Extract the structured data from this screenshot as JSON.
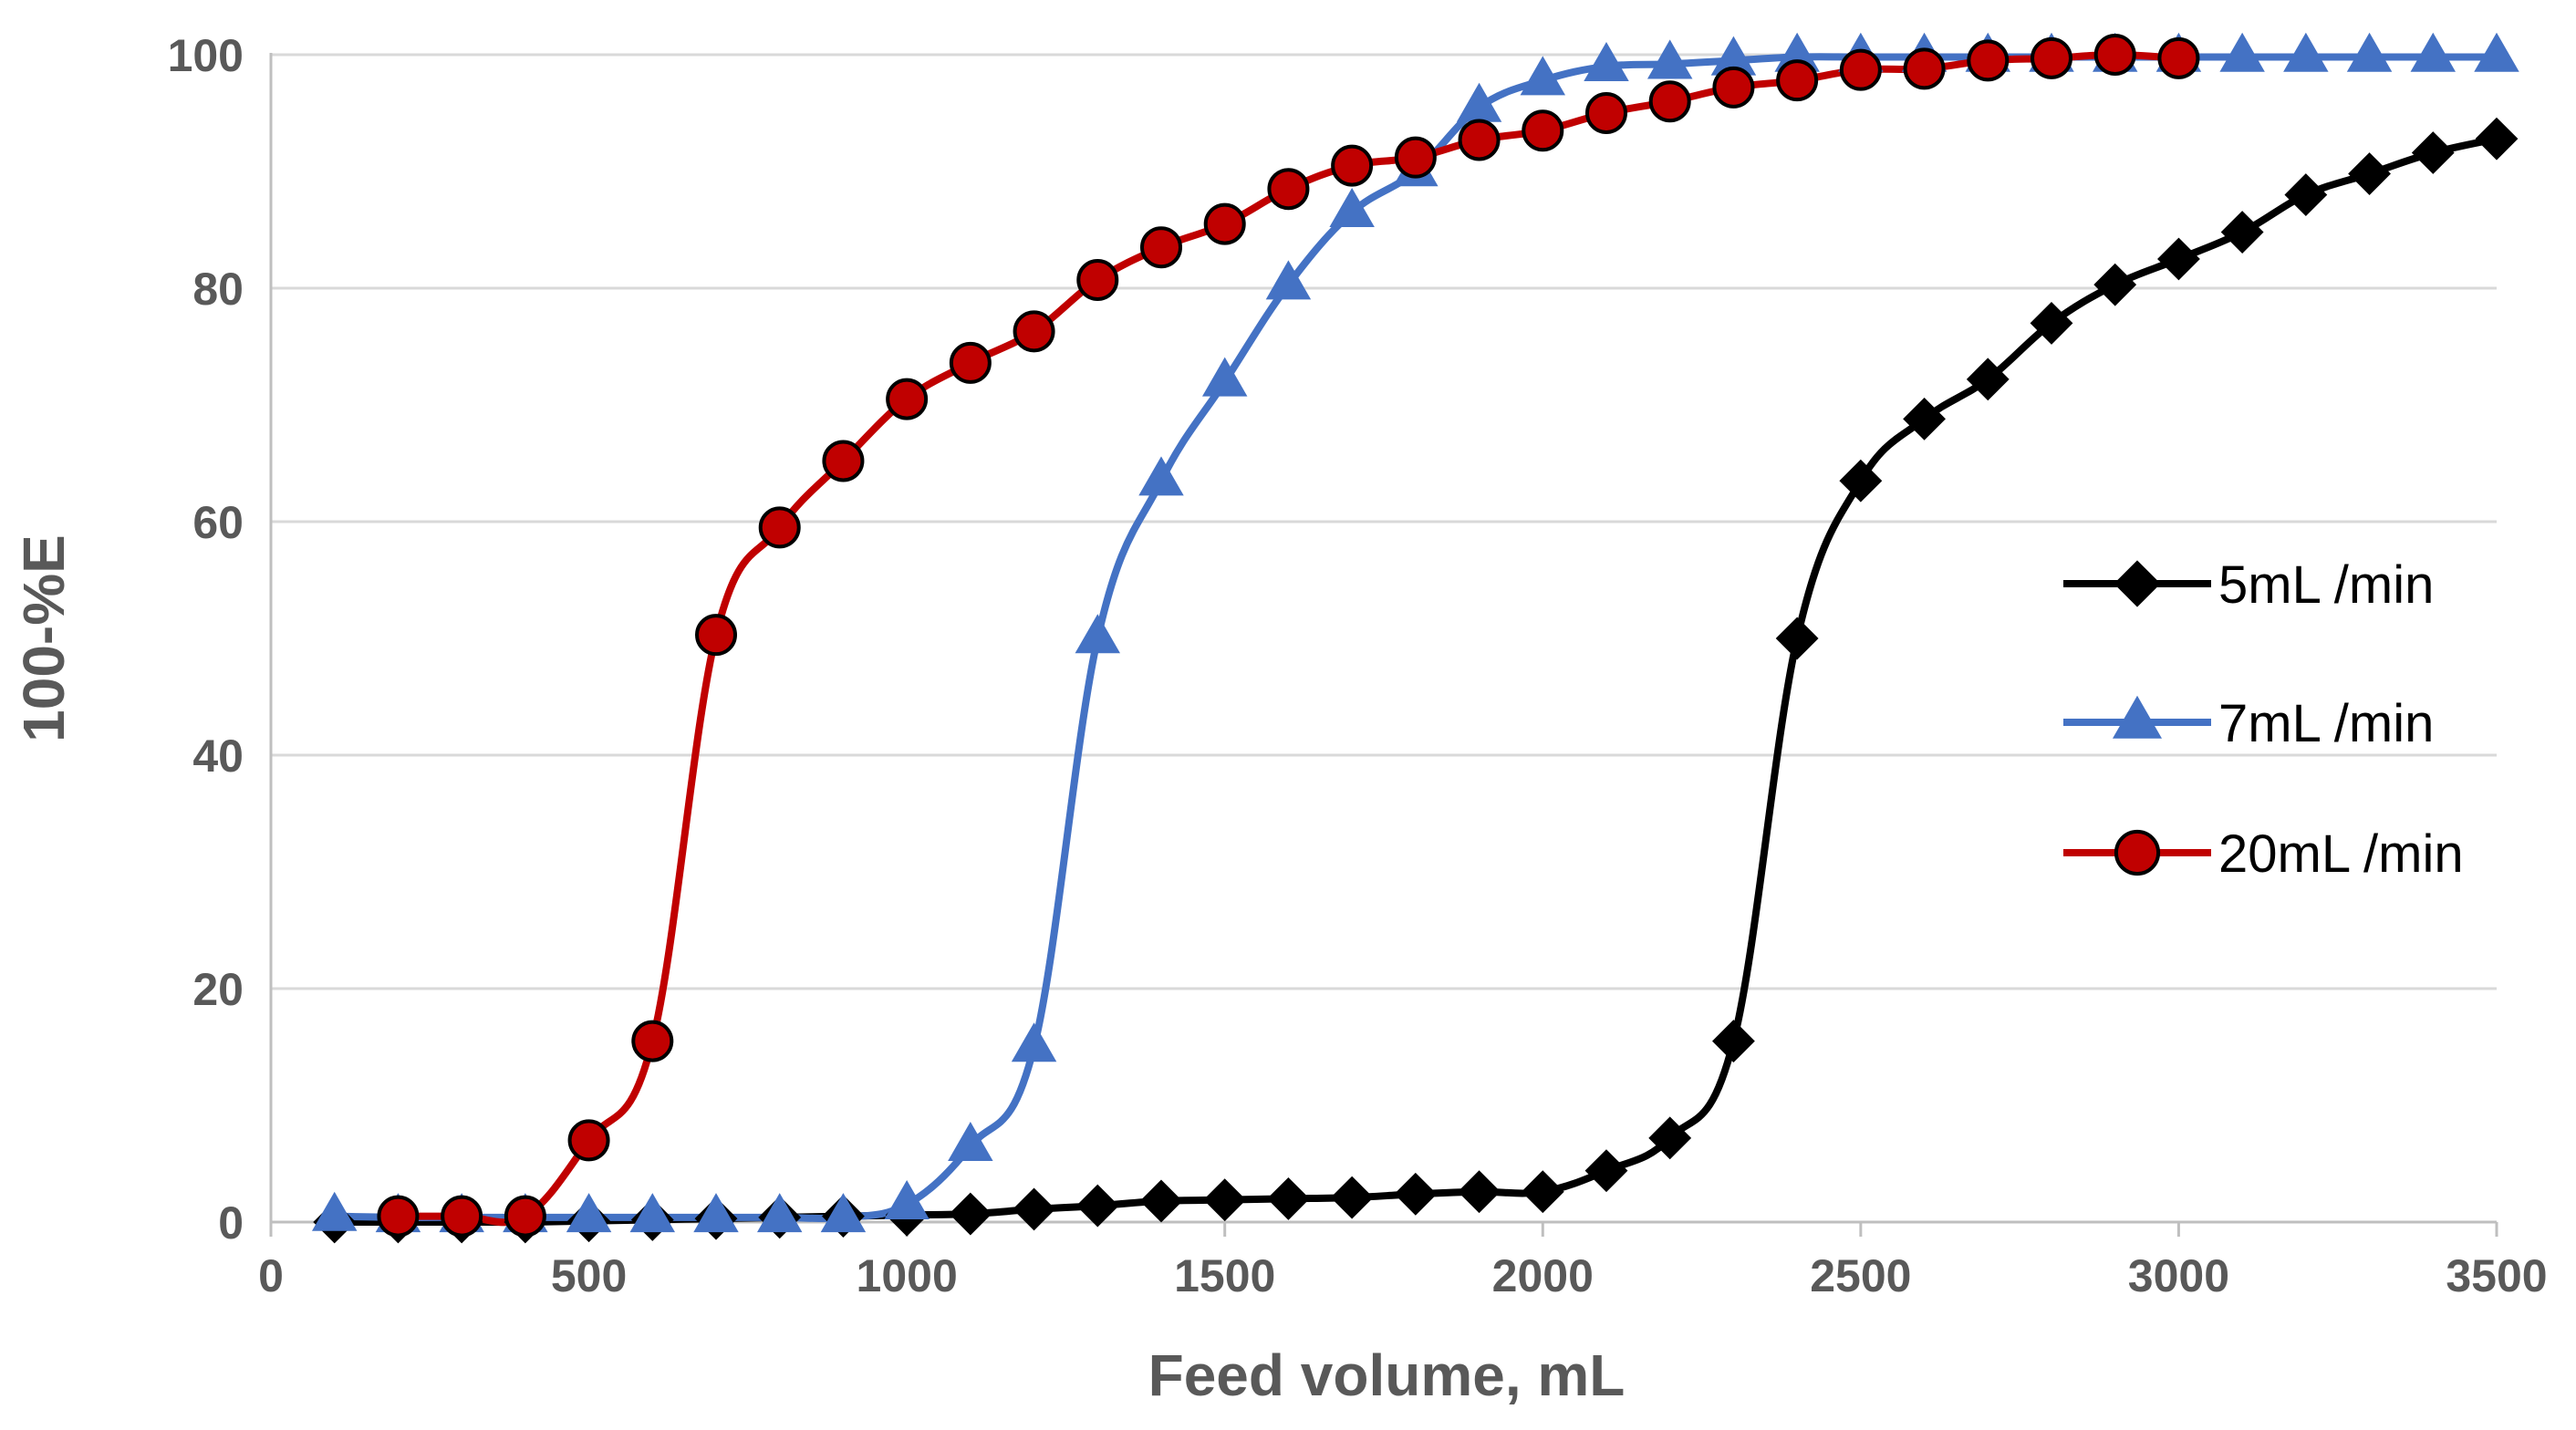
{
  "chart_data": {
    "type": "line",
    "title": "",
    "xlabel": "Feed volume, mL",
    "ylabel": "100-%E",
    "xlim": [
      0,
      3500
    ],
    "ylim": [
      0,
      100
    ],
    "x_ticks": [
      0,
      500,
      1000,
      1500,
      2000,
      2500,
      3000,
      3500
    ],
    "y_ticks": [
      0,
      20,
      40,
      60,
      80,
      100
    ],
    "x_tick_labels": [
      "0",
      "500",
      "1000",
      "1500",
      "2000",
      "2500",
      "3000",
      "3500"
    ],
    "y_tick_labels": [
      "0",
      "20",
      "40",
      "60",
      "80",
      "100"
    ],
    "grid": "horizontal",
    "legend_position": "right",
    "series": [
      {
        "name": "5mL /min",
        "color": "#000000",
        "marker": "diamond",
        "x": [
          100,
          200,
          300,
          400,
          500,
          600,
          700,
          800,
          900,
          1000,
          1100,
          1200,
          1300,
          1400,
          1500,
          1600,
          1700,
          1800,
          1900,
          2000,
          2100,
          2200,
          2300,
          2400,
          2500,
          2600,
          2700,
          2800,
          2900,
          3000,
          3100,
          3200,
          3300,
          3400,
          3500
        ],
        "y": [
          0,
          0,
          0,
          0,
          0.1,
          0.2,
          0.3,
          0.4,
          0.5,
          0.6,
          0.7,
          1.1,
          1.4,
          1.8,
          1.9,
          2.0,
          2.1,
          2.4,
          2.6,
          2.6,
          4.4,
          7.2,
          15.5,
          50.0,
          63.5,
          68.8,
          72.2,
          77.0,
          80.3,
          82.5,
          84.8,
          88.0,
          89.8,
          91.6,
          92.8
        ]
      },
      {
        "name": "7mL /min",
        "color": "#4472C4",
        "marker": "triangle",
        "x": [
          100,
          200,
          300,
          400,
          500,
          600,
          700,
          800,
          900,
          1000,
          1100,
          1200,
          1300,
          1400,
          1500,
          1600,
          1700,
          1800,
          1900,
          2000,
          2100,
          2200,
          2300,
          2400,
          2500,
          2600,
          2700,
          2800,
          2900,
          3000,
          3100,
          3200,
          3300,
          3400,
          3500
        ],
        "y": [
          0.5,
          0.4,
          0.4,
          0.4,
          0.4,
          0.4,
          0.4,
          0.4,
          0.4,
          1.5,
          6.5,
          15.0,
          50.0,
          63.5,
          72.0,
          80.3,
          86.5,
          90.0,
          95.5,
          97.8,
          99.0,
          99.2,
          99.5,
          99.8,
          99.8,
          99.8,
          99.8,
          99.8,
          99.8,
          99.8,
          99.8,
          99.8,
          99.8,
          99.8,
          99.8
        ]
      },
      {
        "name": "20mL /min",
        "color": "#C00000",
        "marker": "circle",
        "x": [
          200,
          300,
          400,
          500,
          600,
          700,
          800,
          900,
          1000,
          1100,
          1200,
          1300,
          1400,
          1500,
          1600,
          1700,
          1800,
          1900,
          2000,
          2100,
          2200,
          2300,
          2400,
          2500,
          2600,
          2700,
          2800,
          2900,
          3000
        ],
        "y": [
          0.5,
          0.5,
          0.5,
          7.0,
          15.5,
          50.3,
          59.5,
          65.2,
          70.5,
          73.6,
          76.3,
          80.7,
          83.5,
          85.5,
          88.5,
          90.5,
          91.2,
          92.7,
          93.5,
          95.0,
          96.0,
          97.2,
          97.8,
          98.7,
          98.8,
          99.5,
          99.7,
          100.0,
          99.7
        ]
      }
    ]
  }
}
